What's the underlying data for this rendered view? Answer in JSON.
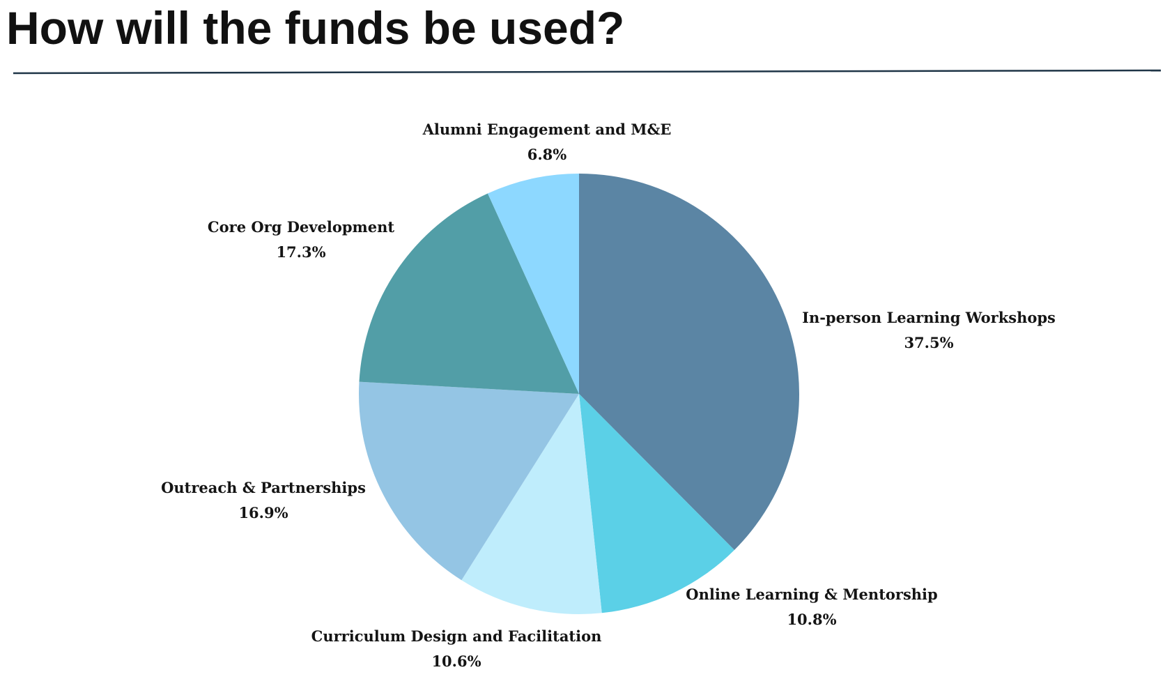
{
  "page": {
    "title": "How will the funds be used?"
  },
  "chart_data": {
    "type": "pie",
    "start_angle_deg": 0,
    "direction": "clockwise",
    "slices": [
      {
        "label": "In-person Learning Workshops",
        "value": 37.5,
        "value_label": "37.5%",
        "color": "#5b85a4"
      },
      {
        "label": "Online Learning & Mentorship",
        "value": 10.8,
        "value_label": "10.8%",
        "color": "#5bd0e7"
      },
      {
        "label": "Curriculum Design and Facilitation",
        "value": 10.6,
        "value_label": "10.6%",
        "color": "#bfedfc"
      },
      {
        "label": "Outreach & Partnerships",
        "value": 16.9,
        "value_label": "16.9%",
        "color": "#94c5e4"
      },
      {
        "label": "Core Org Development",
        "value": 17.3,
        "value_label": "17.3%",
        "color": "#529ea7"
      },
      {
        "label": "Alumni Engagement and M&E",
        "value": 6.8,
        "value_label": "6.8%",
        "color": "#8dd8ff"
      }
    ],
    "rule_color": "#1f3547"
  }
}
